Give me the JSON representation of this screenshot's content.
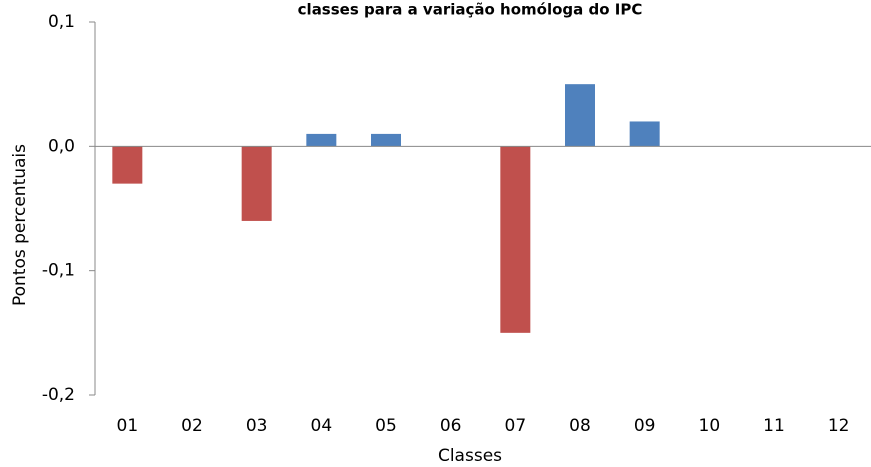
{
  "chart_data": {
    "type": "bar",
    "title": "classes para a variação homóloga do IPC",
    "xlabel": "Classes",
    "ylabel": "Pontos percentuais",
    "categories": [
      "01",
      "02",
      "03",
      "04",
      "05",
      "06",
      "07",
      "08",
      "09",
      "10",
      "11",
      "12"
    ],
    "values": [
      -0.03,
      0,
      -0.06,
      0.01,
      0.01,
      0,
      -0.15,
      0.05,
      0.02,
      0,
      0,
      0
    ],
    "colors": [
      "#c0504d",
      "#4f81bd",
      "#c0504d",
      "#4f81bd",
      "#4f81bd",
      "#4f81bd",
      "#c0504d",
      "#4f81bd",
      "#4f81bd",
      "#4f81bd",
      "#4f81bd",
      "#4f81bd"
    ],
    "ylim": [
      -0.2,
      0.1
    ],
    "yticks": [
      {
        "value": -0.2,
        "label": "-0,2"
      },
      {
        "value": -0.1,
        "label": "-0,1"
      },
      {
        "value": 0,
        "label": "0,0"
      },
      {
        "value": 0.1,
        "label": "0,1"
      }
    ]
  }
}
